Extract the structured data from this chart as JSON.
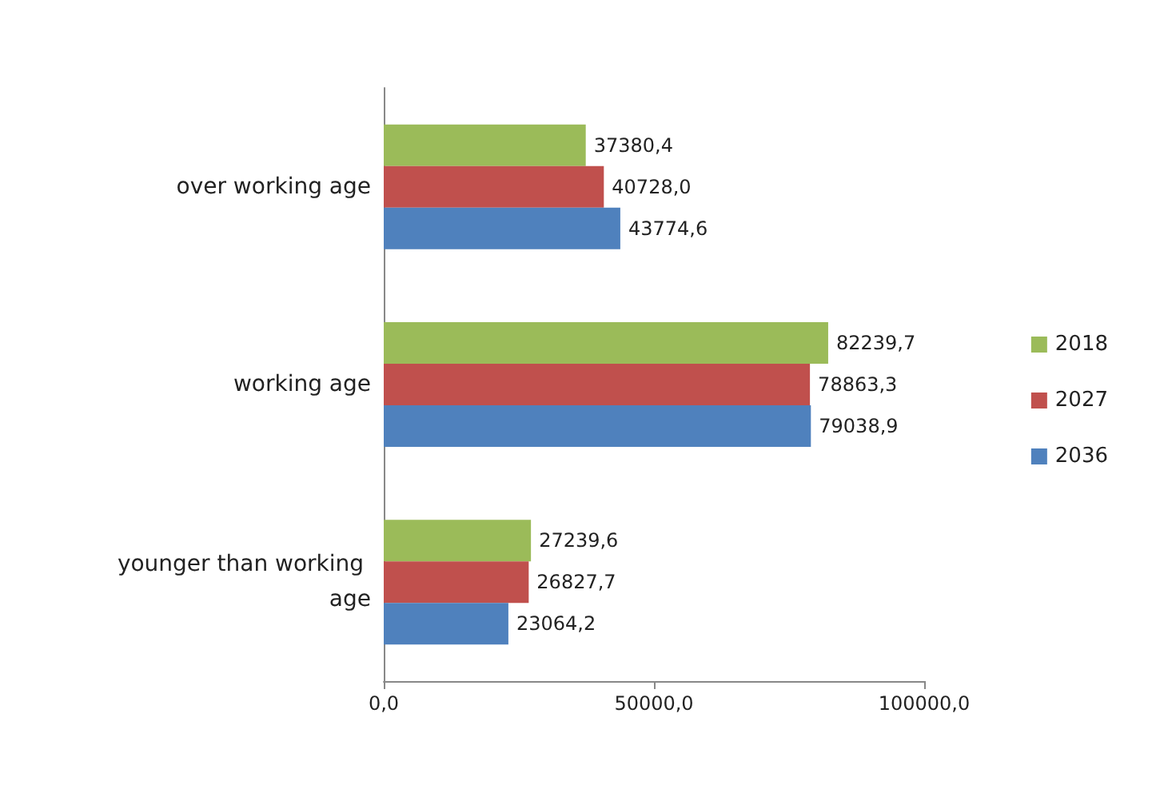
{
  "chart_data": {
    "type": "bar",
    "orientation": "horizontal",
    "categories": [
      "over working age",
      "working age",
      "younger than working age"
    ],
    "series": [
      {
        "name": "2018",
        "color": "#9bbb59",
        "values": [
          37380.4,
          82239.7,
          27239.6
        ],
        "value_labels": [
          "37380,4",
          "82239,7",
          "27239,6"
        ]
      },
      {
        "name": "2027",
        "color": "#c0504d",
        "values": [
          40728.0,
          78863.3,
          26827.7
        ],
        "value_labels": [
          "40728,0",
          "78863,3",
          "26827,7"
        ]
      },
      {
        "name": "2036",
        "color": "#4f81bd",
        "values": [
          43774.6,
          79038.9,
          23064.2
        ],
        "value_labels": [
          "43774,6",
          "79038,9",
          "23064,2"
        ]
      }
    ],
    "xlim": [
      0,
      100000
    ],
    "xticks": [
      {
        "value": 0,
        "label": "0,0"
      },
      {
        "value": 50000,
        "label": "50000,0"
      },
      {
        "value": 100000,
        "label": "100000,0"
      }
    ],
    "grid": false,
    "legend": "right"
  }
}
